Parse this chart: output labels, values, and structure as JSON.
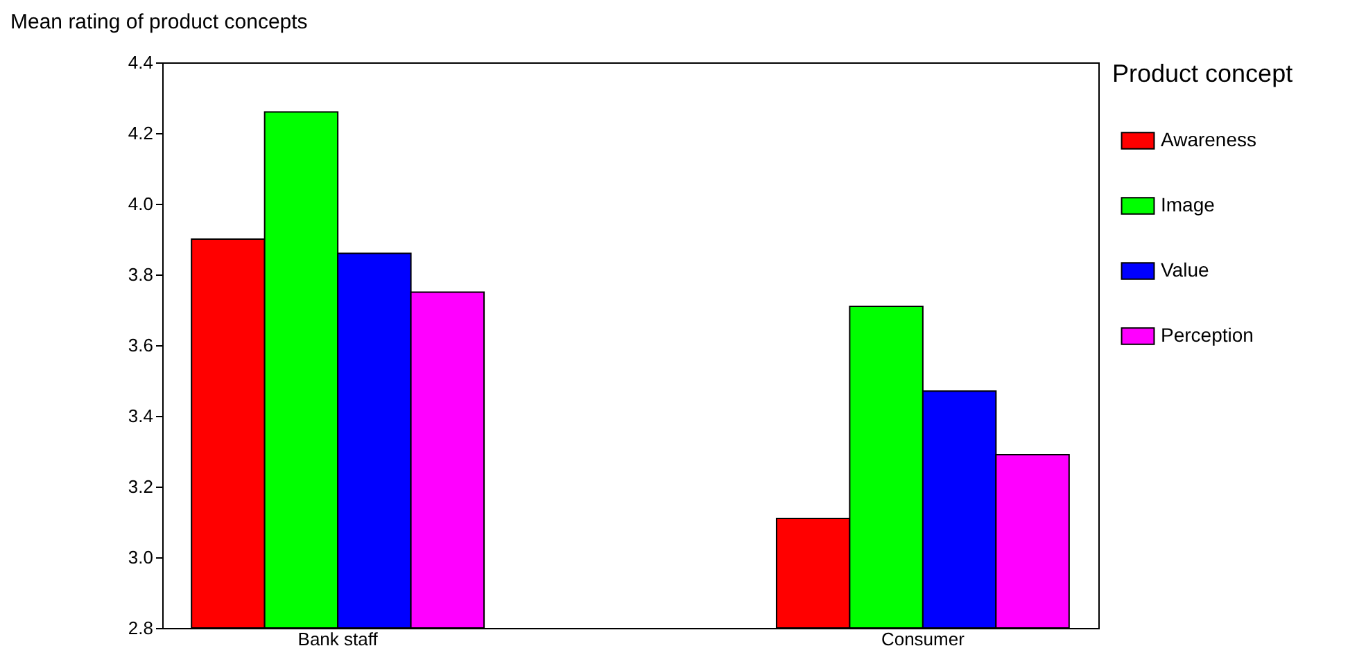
{
  "chart_data": {
    "type": "bar",
    "ylabel": "Mean rating of product concepts",
    "legend_title": "Product concept",
    "categories": [
      "Bank staff",
      "Consumer"
    ],
    "series": [
      {
        "name": "Awareness",
        "color": "#ff0000",
        "values": [
          3.9,
          3.11
        ]
      },
      {
        "name": "Image",
        "color": "#00ff00",
        "values": [
          4.26,
          3.71
        ]
      },
      {
        "name": "Value",
        "color": "#0000ff",
        "values": [
          3.86,
          3.47
        ]
      },
      {
        "name": "Perception",
        "color": "#ff00ff",
        "values": [
          3.75,
          3.29
        ]
      }
    ],
    "ylim": [
      2.8,
      4.4
    ],
    "yticks": [
      {
        "value": 2.8,
        "label": "2.8"
      },
      {
        "value": 3.0,
        "label": "3.0"
      },
      {
        "value": 3.2,
        "label": "3.2"
      },
      {
        "value": 3.4,
        "label": "3.4"
      },
      {
        "value": 3.6,
        "label": "3.6"
      },
      {
        "value": 3.8,
        "label": "3.8"
      },
      {
        "value": 4.0,
        "label": "4.0"
      },
      {
        "value": 4.2,
        "label": "4.2"
      },
      {
        "value": 4.4,
        "label": "4.4"
      }
    ],
    "grid": false,
    "legend": "right"
  }
}
